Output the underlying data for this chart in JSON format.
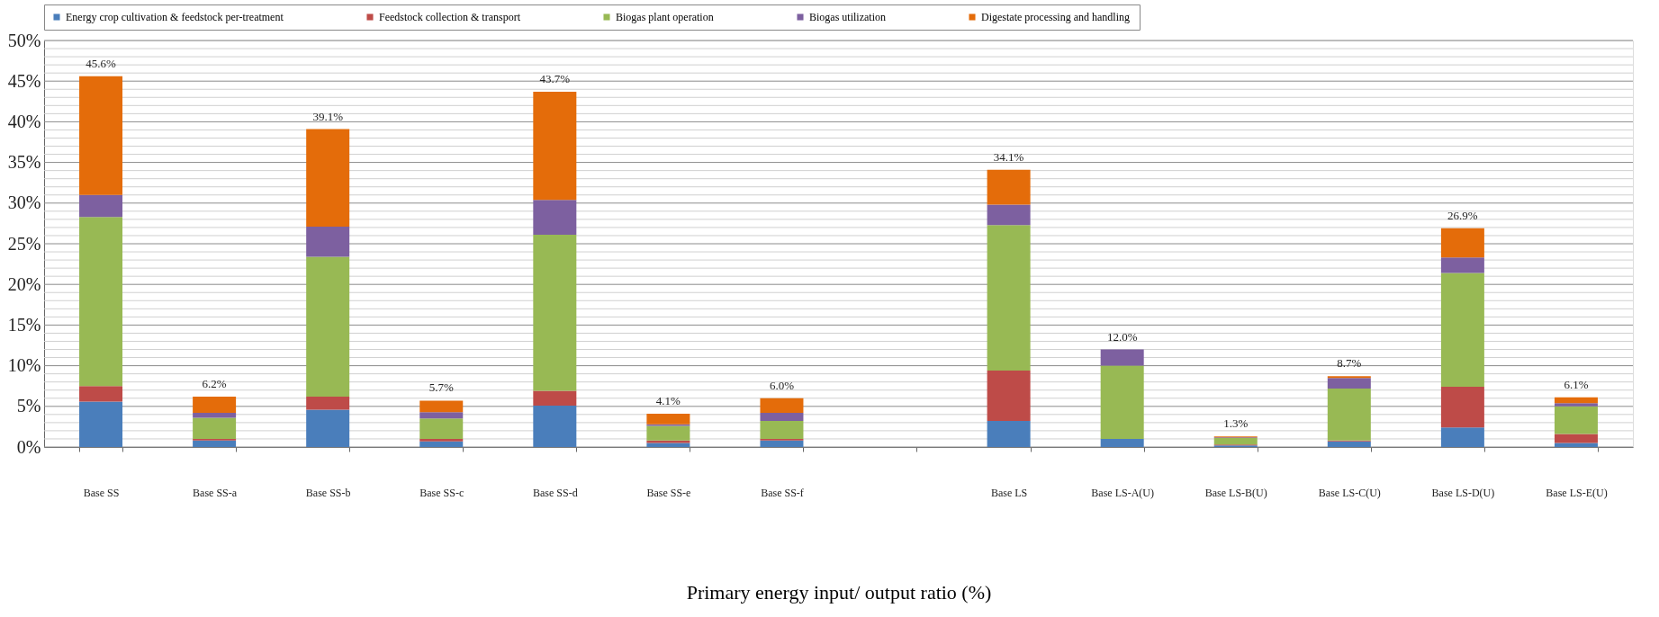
{
  "chart_data": {
    "type": "bar",
    "stacked": true,
    "xlabel": "Primary energy input/ output ratio (%)",
    "categories": [
      "Base SS",
      "Base SS-a",
      "Base SS-b",
      "Base SS-c",
      "Base SS-d",
      "Base SS-e",
      "Base SS-f",
      null,
      "Base LS",
      "Base LS-A(U)",
      "Base LS-B(U)",
      "Base LS-C(U)",
      "Base LS-D(U)",
      "Base LS-E(U)"
    ],
    "series": [
      {
        "name": "Energy crop cultivation & feedstock per-treatment",
        "color": "#4a7ebb",
        "values": [
          5.6,
          0.8,
          4.6,
          0.7,
          5.1,
          0.5,
          0.8,
          null,
          3.2,
          1.0,
          0.2,
          0.7,
          2.4,
          0.5
        ]
      },
      {
        "name": "Feedstock collection & transport",
        "color": "#be4b48",
        "values": [
          1.9,
          0.2,
          1.6,
          0.3,
          1.8,
          0.3,
          0.2,
          null,
          6.2,
          0.0,
          0.1,
          0.1,
          5.0,
          1.1
        ]
      },
      {
        "name": "Biogas plant operation",
        "color": "#98b954",
        "values": [
          20.8,
          2.6,
          17.2,
          2.5,
          19.2,
          1.8,
          2.2,
          null,
          17.9,
          9.0,
          0.8,
          6.4,
          14.0,
          3.4
        ]
      },
      {
        "name": "Biogas utilization",
        "color": "#7d60a0",
        "values": [
          2.7,
          0.6,
          3.7,
          0.8,
          4.3,
          0.2,
          1.0,
          null,
          2.5,
          2.0,
          0.1,
          1.3,
          1.9,
          0.4
        ]
      },
      {
        "name": "Digestate processing and  handling",
        "color": "#e46c0a",
        "values": [
          14.6,
          2.0,
          12.0,
          1.4,
          13.3,
          1.3,
          1.8,
          null,
          4.3,
          0.0,
          0.1,
          0.2,
          3.6,
          0.7
        ]
      }
    ],
    "totals": [
      "45.6%",
      "6.2%",
      "39.1%",
      "5.7%",
      "43.7%",
      "4.1%",
      "6.0%",
      null,
      "34.1%",
      "12.0%",
      "1.3%",
      "8.7%",
      "26.9%",
      "6.1%"
    ],
    "ylim": [
      0,
      50
    ],
    "yticks": [
      {
        "value": 0,
        "label": "0%"
      },
      {
        "value": 1,
        "label": null
      },
      {
        "value": 2,
        "label": null
      },
      {
        "value": 3,
        "label": null
      },
      {
        "value": 4,
        "label": null
      },
      {
        "value": 5,
        "label": "5%"
      },
      {
        "value": 6,
        "label": null
      },
      {
        "value": 7,
        "label": null
      },
      {
        "value": 8,
        "label": null
      },
      {
        "value": 9,
        "label": null
      },
      {
        "value": 10,
        "label": "10%"
      },
      {
        "value": 11,
        "label": null
      },
      {
        "value": 12,
        "label": null
      },
      {
        "value": 13,
        "label": null
      },
      {
        "value": 14,
        "label": null
      },
      {
        "value": 15,
        "label": "15%"
      },
      {
        "value": 16,
        "label": null
      },
      {
        "value": 17,
        "label": null
      },
      {
        "value": 18,
        "label": null
      },
      {
        "value": 19,
        "label": null
      },
      {
        "value": 20,
        "label": "20%"
      },
      {
        "value": 21,
        "label": null
      },
      {
        "value": 22,
        "label": null
      },
      {
        "value": 23,
        "label": null
      },
      {
        "value": 24,
        "label": null
      },
      {
        "value": 25,
        "label": "25%"
      },
      {
        "value": 26,
        "label": null
      },
      {
        "value": 27,
        "label": null
      },
      {
        "value": 28,
        "label": null
      },
      {
        "value": 29,
        "label": null
      },
      {
        "value": 30,
        "label": "30%"
      },
      {
        "value": 31,
        "label": null
      },
      {
        "value": 32,
        "label": null
      },
      {
        "value": 33,
        "label": null
      },
      {
        "value": 34,
        "label": null
      },
      {
        "value": 35,
        "label": "35%"
      },
      {
        "value": 36,
        "label": null
      },
      {
        "value": 37,
        "label": null
      },
      {
        "value": 38,
        "label": null
      },
      {
        "value": 39,
        "label": null
      },
      {
        "value": 40,
        "label": "40%"
      },
      {
        "value": 41,
        "label": null
      },
      {
        "value": 42,
        "label": null
      },
      {
        "value": 43,
        "label": null
      },
      {
        "value": 44,
        "label": null
      },
      {
        "value": 45,
        "label": "45%"
      },
      {
        "value": 46,
        "label": null
      },
      {
        "value": 47,
        "label": null
      },
      {
        "value": 48,
        "label": null
      },
      {
        "value": 49,
        "label": null
      },
      {
        "value": 50,
        "label": "50%"
      }
    ],
    "grid": "y",
    "legend": "top"
  }
}
